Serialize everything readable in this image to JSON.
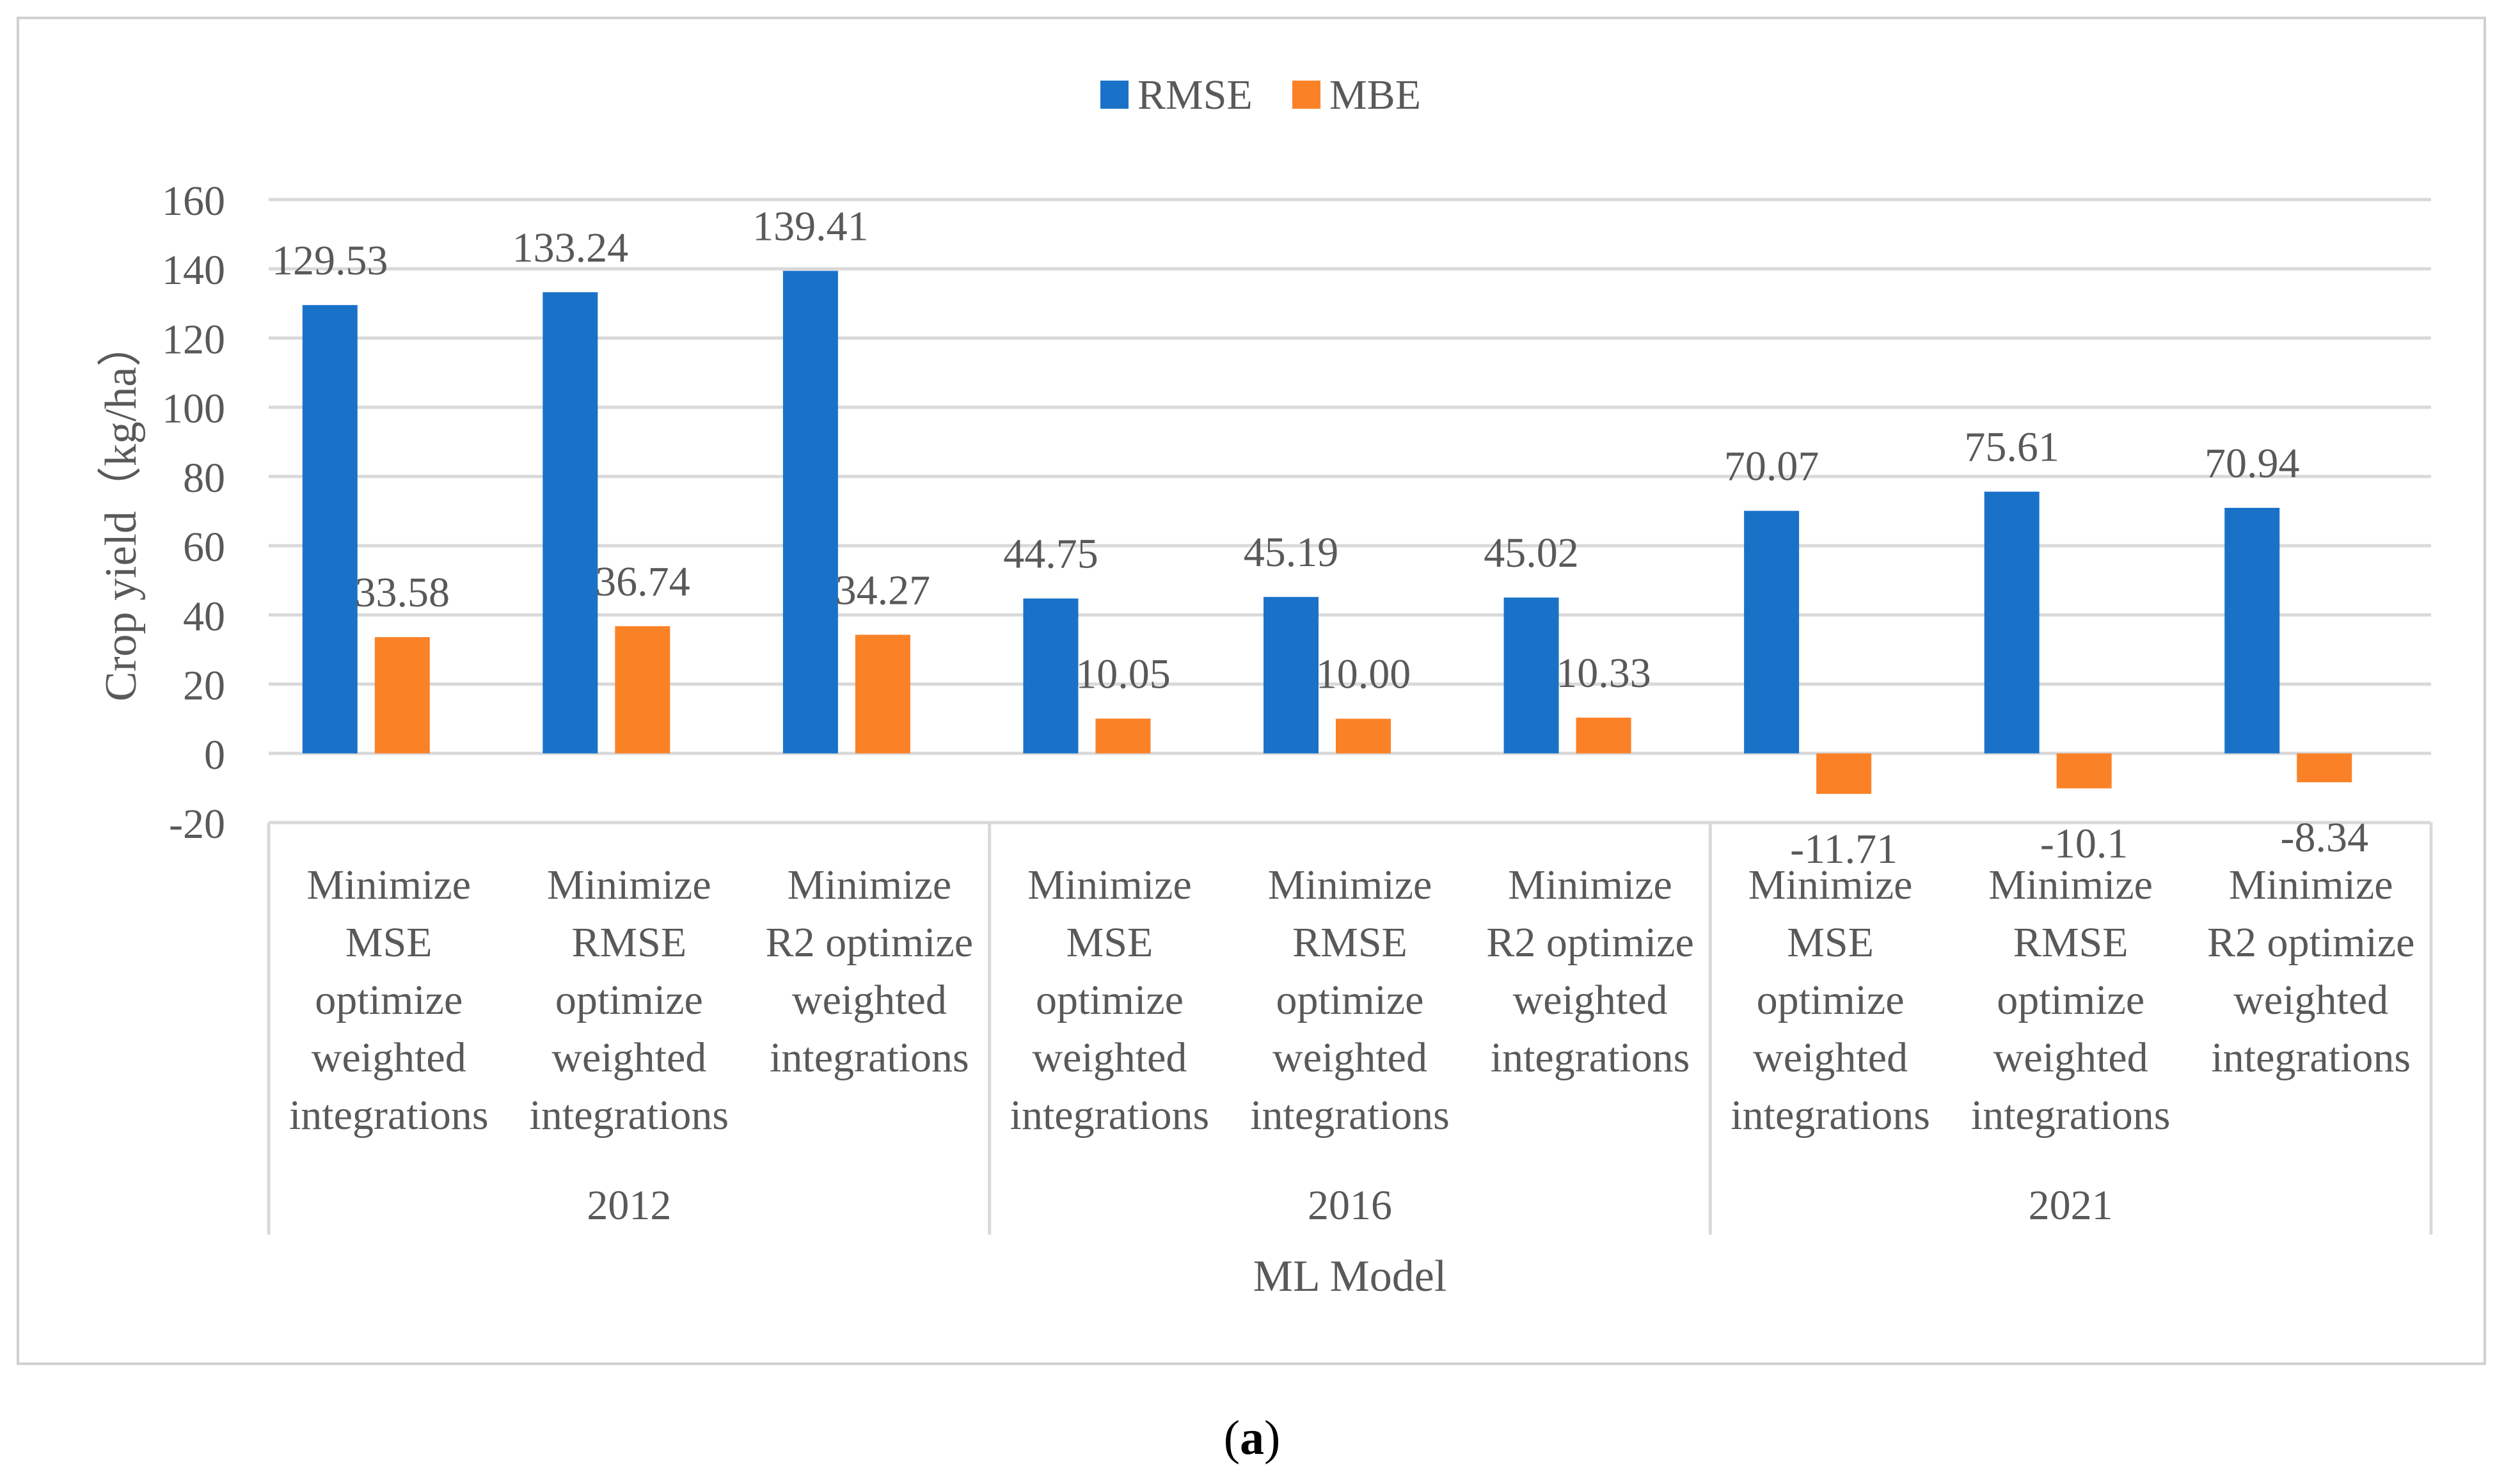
{
  "chart_data": {
    "type": "bar",
    "ylabel": "Crop yield（kg/ha）",
    "xlabel": "ML Model",
    "ylim": [
      -20,
      160
    ],
    "yticks": [
      -20,
      0,
      20,
      40,
      60,
      80,
      100,
      120,
      140,
      160
    ],
    "legend_position": "top-center",
    "grid": true,
    "groups": [
      {
        "label": "2012",
        "categories": [
          [
            "Minimize",
            "MSE",
            "optimize",
            "weighted",
            "integrations"
          ],
          [
            "Minimize",
            "RMSE",
            "optimize",
            "weighted",
            "integrations"
          ],
          [
            "Minimize",
            "R2 optimize",
            "weighted",
            "integrations"
          ]
        ]
      },
      {
        "label": "2016",
        "categories": [
          [
            "Minimize",
            "MSE",
            "optimize",
            "weighted",
            "integrations"
          ],
          [
            "Minimize",
            "RMSE",
            "optimize",
            "weighted",
            "integrations"
          ],
          [
            "Minimize",
            "R2 optimize",
            "weighted",
            "integrations"
          ]
        ]
      },
      {
        "label": "2021",
        "categories": [
          [
            "Minimize",
            "MSE",
            "optimize",
            "weighted",
            "integrations"
          ],
          [
            "Minimize",
            "RMSE",
            "optimize",
            "weighted",
            "integrations"
          ],
          [
            "Minimize",
            "R2 optimize",
            "weighted",
            "integrations"
          ]
        ]
      }
    ],
    "series": [
      {
        "name": "RMSE",
        "color": "#1a72c8",
        "values": [
          129.53,
          133.24,
          139.41,
          44.75,
          45.19,
          45.02,
          70.07,
          75.61,
          70.94
        ],
        "labels": [
          "129.53",
          "133.24",
          "139.41",
          "44.75",
          "45.19",
          "45.02",
          "70.07",
          "75.61",
          "70.94"
        ]
      },
      {
        "name": "MBE",
        "color": "#fb8127",
        "values": [
          33.58,
          36.74,
          34.27,
          10.05,
          10.0,
          10.33,
          -11.71,
          -10.1,
          -8.34
        ],
        "labels": [
          "33.58",
          "36.74",
          "34.27",
          "10.05",
          "10.00",
          "10.33",
          "-11.71",
          "-10.1",
          "-8.34"
        ]
      }
    ]
  },
  "caption": {
    "open": "(",
    "label": "a",
    "close": ")"
  }
}
